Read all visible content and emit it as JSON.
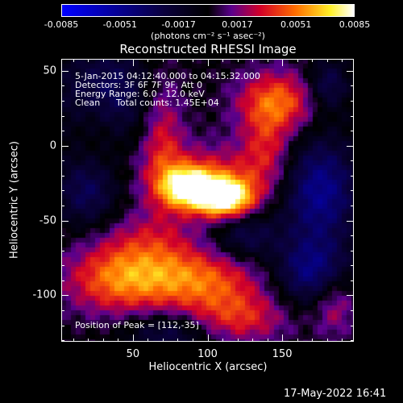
{
  "chart_data": {
    "type": "heatmap",
    "title": "Reconstructed RHESSI Image",
    "xlabel": "Heliocentric X (arcsec)",
    "ylabel": "Heliocentric Y (arcsec)",
    "xlim": [
      2,
      198
    ],
    "ylim": [
      -131,
      58
    ],
    "x_ticks": [
      50,
      100,
      150
    ],
    "y_ticks": [
      50,
      0,
      -50,
      -100
    ],
    "colorbar": {
      "units": "(photons cm⁻² s⁻¹ asec⁻²)",
      "tick_labels": [
        "-0.0085",
        "-0.0051",
        "-0.0017",
        "0.0017",
        "0.0051",
        "0.0085"
      ],
      "range": [
        -0.0085,
        0.0085
      ]
    },
    "annotations": {
      "time_range": "5-Jan-2015 04:12:40.000 to 04:15:32.000",
      "detectors": "Detectors: 3F 6F 7F 9F, Att 0",
      "energy_range": "Energy Range: 6.0 - 12.0 keV",
      "method": "Clean",
      "total_counts": "Total counts: 1.45E+04",
      "peak": "Position of Peak = [112,-35]"
    },
    "peak_position": [
      112,
      -35
    ],
    "sources": [
      {
        "x": 112,
        "y": -35,
        "amp": 0.0085,
        "sx": 13,
        "sy": 9
      },
      {
        "x": 88,
        "y": -28,
        "amp": 0.0075,
        "sx": 12,
        "sy": 9
      },
      {
        "x": 100,
        "y": -22,
        "amp": 0.0035,
        "sx": 30,
        "sy": 16
      },
      {
        "x": 148,
        "y": 30,
        "amp": 0.0045,
        "sx": 20,
        "sy": 14
      },
      {
        "x": 140,
        "y": 0,
        "amp": 0.003,
        "sx": 12,
        "sy": 20
      },
      {
        "x": 40,
        "y": -90,
        "amp": 0.0045,
        "sx": 26,
        "sy": 16
      },
      {
        "x": 95,
        "y": -90,
        "amp": 0.0045,
        "sx": 30,
        "sy": 14
      },
      {
        "x": 120,
        "y": -115,
        "amp": 0.0035,
        "sx": 25,
        "sy": 12
      },
      {
        "x": 60,
        "y": -65,
        "amp": 0.0025,
        "sx": 25,
        "sy": 15
      },
      {
        "x": 70,
        "y": 5,
        "amp": 0.003,
        "sx": 10,
        "sy": 30
      },
      {
        "x": 25,
        "y": 20,
        "amp": 0.002,
        "sx": 12,
        "sy": 25
      },
      {
        "x": 185,
        "y": -105,
        "amp": 0.003,
        "sx": 10,
        "sy": 15
      }
    ],
    "negative_regions": [
      {
        "x": 30,
        "y": 35,
        "amp": -0.0045,
        "sx": 20,
        "sy": 22
      },
      {
        "x": 175,
        "y": -30,
        "amp": -0.005,
        "sx": 18,
        "sy": 25
      },
      {
        "x": 170,
        "y": -85,
        "amp": -0.0045,
        "sx": 18,
        "sy": 16
      },
      {
        "x": 20,
        "y": -30,
        "amp": -0.0035,
        "sx": 15,
        "sy": 18
      },
      {
        "x": 125,
        "y": -60,
        "amp": -0.003,
        "sx": 15,
        "sy": 12
      },
      {
        "x": 75,
        "y": -125,
        "amp": -0.003,
        "sx": 20,
        "sy": 10
      },
      {
        "x": 180,
        "y": 40,
        "amp": -0.0035,
        "sx": 10,
        "sy": 12
      }
    ]
  },
  "footer": {
    "timestamp": "17-May-2022 16:41"
  }
}
